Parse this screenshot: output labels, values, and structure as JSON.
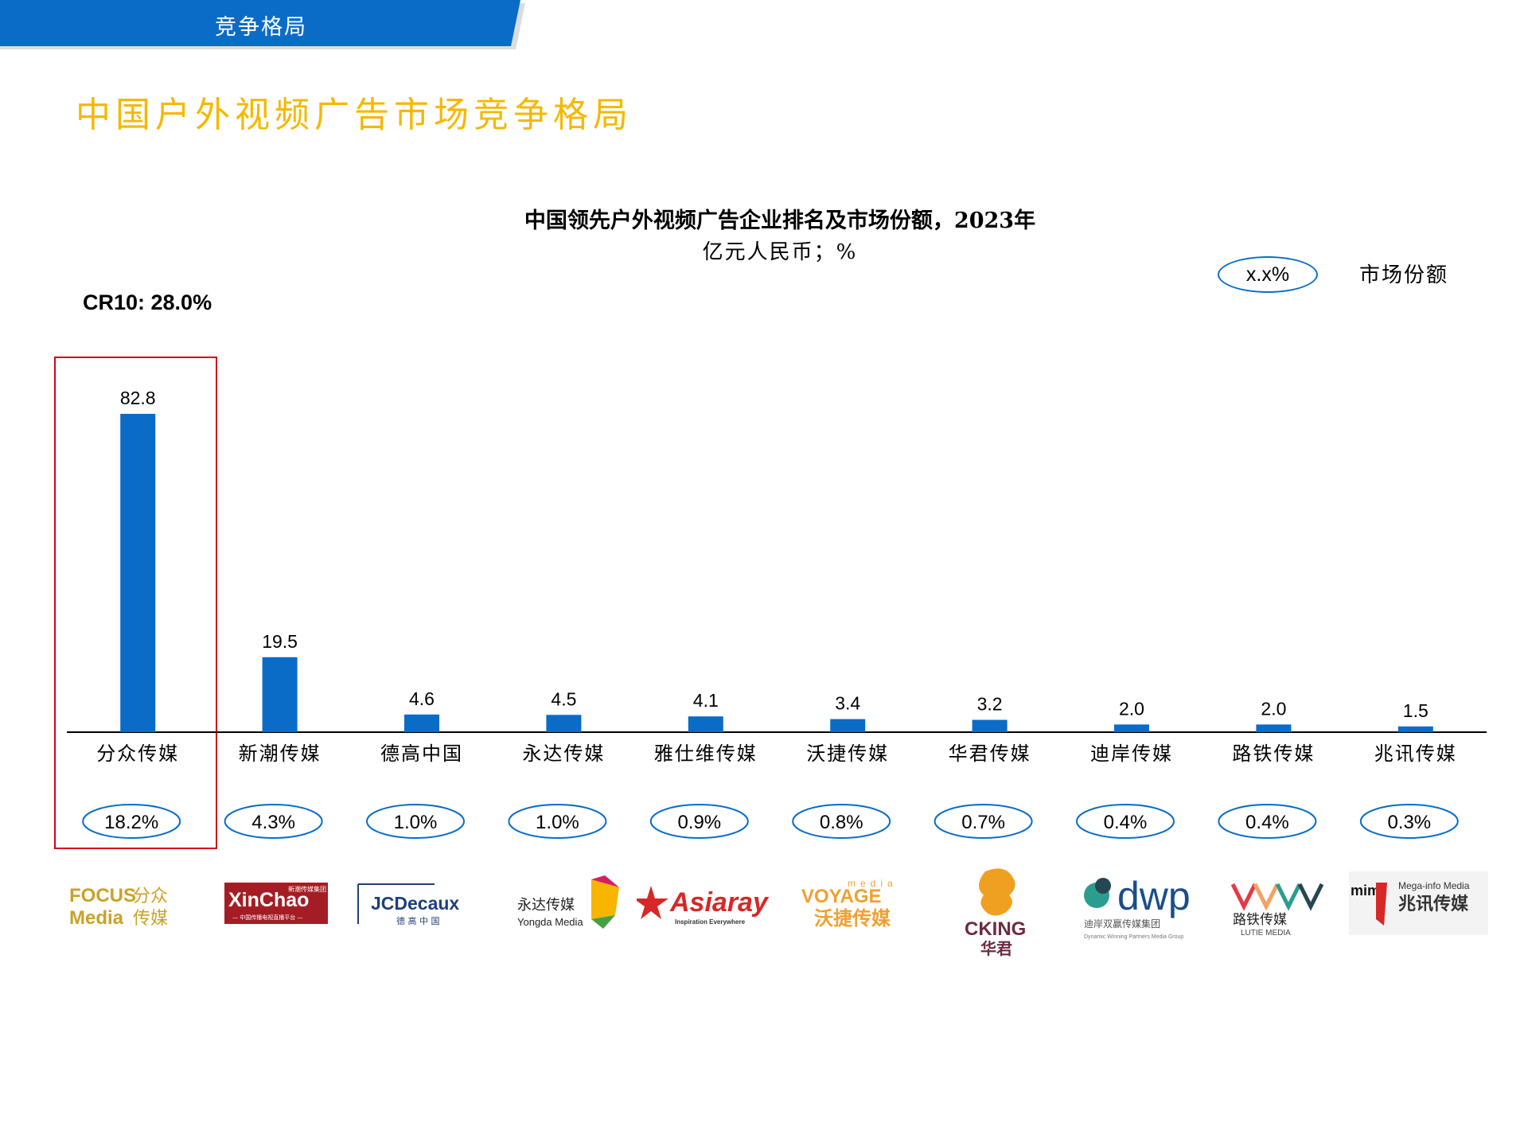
{
  "header": {
    "section_tag": "竞争格局",
    "page_title": "中国户外视频广告市场竞争格局"
  },
  "colors": {
    "bar": "#0a6cc7",
    "banner": "#0a6cc7",
    "title_accent": "#f5b800",
    "highlight_border": "#d0021b"
  },
  "cr10_label": "CR10: 28.0%",
  "legend": {
    "oval_text": "x.x%",
    "label": "市场份额"
  },
  "chart_data": {
    "type": "bar",
    "title": "中国领先户外视频广告企业排名及市场份额，2023年",
    "subtitle": "亿元人民币；%",
    "categories": [
      "分众传媒",
      "新潮传媒",
      "德高中国",
      "永达传媒",
      "雅仕维传媒",
      "沃捷传媒",
      "华君传媒",
      "迪岸传媒",
      "路铁传媒",
      "兆讯传媒"
    ],
    "values": [
      82.8,
      19.5,
      4.6,
      4.5,
      4.1,
      3.4,
      3.2,
      2.0,
      2.0,
      1.5
    ],
    "value_labels": [
      "82.8",
      "19.5",
      "4.6",
      "4.5",
      "4.1",
      "3.4",
      "3.2",
      "2.0",
      "2.0",
      "1.5"
    ],
    "market_share": [
      "18.2%",
      "4.3%",
      "1.0%",
      "1.0%",
      "0.9%",
      "0.8%",
      "0.7%",
      "0.4%",
      "0.4%",
      "0.3%"
    ],
    "ylim": [
      0,
      82.8
    ],
    "grid": false,
    "highlighted_category": "分众传媒"
  },
  "logos": [
    {
      "icon": "focus-media-logo",
      "text_a": "FOCUS",
      "text_b": "Media",
      "text_c": "分众",
      "text_d": "传媒"
    },
    {
      "icon": "xinchao-logo",
      "text_a": "XinChao",
      "text_b": "新潮传媒集团",
      "text_c": "— 中国传播电视直播平台 —"
    },
    {
      "icon": "jcdecaux-logo",
      "text_a": "JCDecaux",
      "text_b": "德 高 中 国"
    },
    {
      "icon": "yongda-logo",
      "text_a": "永达传媒",
      "text_b": "Yongda Media"
    },
    {
      "icon": "asiaray-logo",
      "text_a": "Asiaray",
      "text_b": "Inspiration Everywhere"
    },
    {
      "icon": "voyage-logo",
      "text_a": "media",
      "text_b": "VOYAGE",
      "text_c": "沃捷传媒"
    },
    {
      "icon": "cking-logo",
      "text_a": "CKING",
      "text_b": "华君"
    },
    {
      "icon": "dwp-logo",
      "text_a": "dwp",
      "text_b": "迪岸双赢传媒集团",
      "text_c": "Dynamic Winning Partners Media Group"
    },
    {
      "icon": "lutie-logo",
      "text_a": "路铁传媒",
      "text_b": "LUTIE MEDIA"
    },
    {
      "icon": "mim-logo",
      "text_a": "mim",
      "text_b": "Mega-info Media",
      "text_c": "兆讯传媒"
    }
  ]
}
